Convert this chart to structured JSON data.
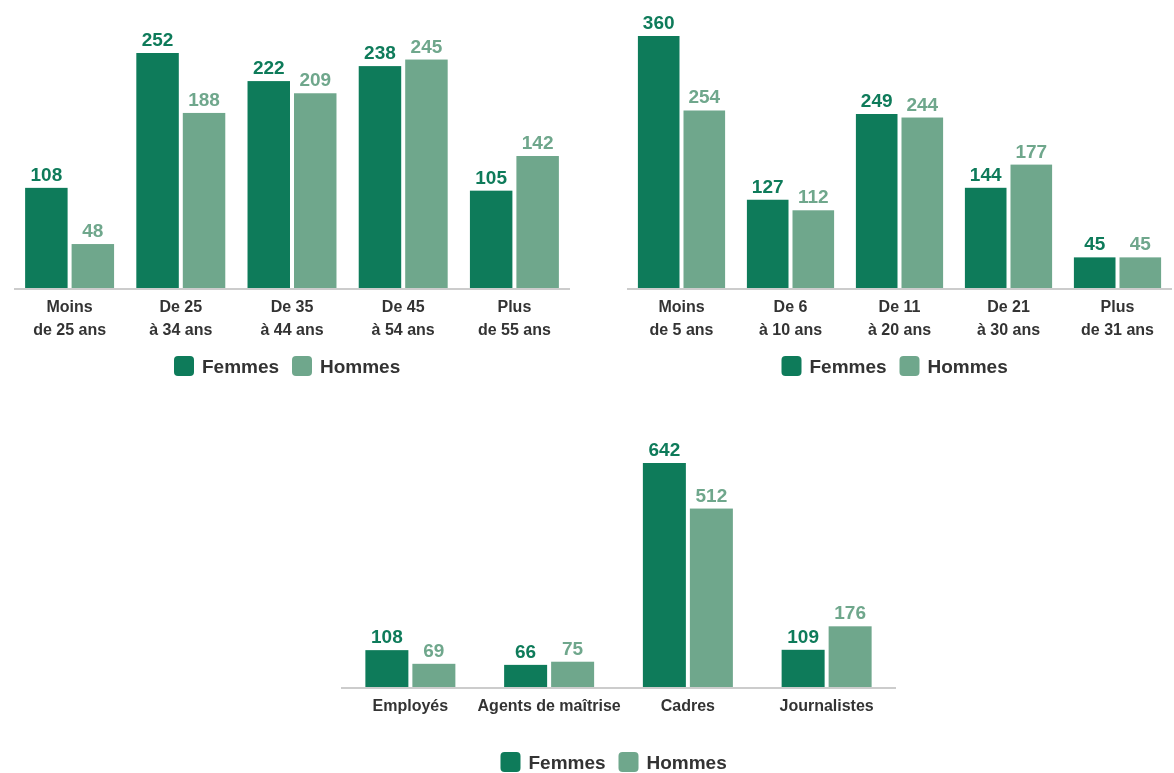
{
  "chart_data": [
    {
      "type": "bar",
      "categories": [
        "Moins\nde 25 ans",
        "De 25\nà 34 ans",
        "De 35\nà 44 ans",
        "De 45\nà 54 ans",
        "Plus\nde 55 ans"
      ],
      "series": [
        {
          "name": "Femmes",
          "color": "#0e7b5a",
          "values": [
            108,
            252,
            222,
            238,
            105
          ]
        },
        {
          "name": "Hommes",
          "color": "#6fa78c",
          "values": [
            48,
            188,
            209,
            245,
            142
          ]
        }
      ],
      "data_labels": true,
      "legend": "bottom"
    },
    {
      "type": "bar",
      "categories": [
        "Moins\nde 5 ans",
        "De 6\nà 10 ans",
        "De 11\nà 20 ans",
        "De 21\nà 30 ans",
        "Plus\nde 31 ans"
      ],
      "series": [
        {
          "name": "Femmes",
          "color": "#0e7b5a",
          "values": [
            360,
            127,
            249,
            144,
            45
          ]
        },
        {
          "name": "Hommes",
          "color": "#6fa78c",
          "values": [
            254,
            112,
            244,
            177,
            45
          ]
        }
      ],
      "data_labels": true,
      "legend": "bottom"
    },
    {
      "type": "bar",
      "categories": [
        "Employés",
        "Agents de maîtrise",
        "Cadres",
        "Journalistes"
      ],
      "series": [
        {
          "name": "Femmes",
          "color": "#0e7b5a",
          "values": [
            108,
            66,
            642,
            109
          ]
        },
        {
          "name": "Hommes",
          "color": "#6fa78c",
          "values": [
            69,
            75,
            512,
            176
          ]
        }
      ],
      "data_labels": true,
      "legend": "bottom"
    }
  ]
}
